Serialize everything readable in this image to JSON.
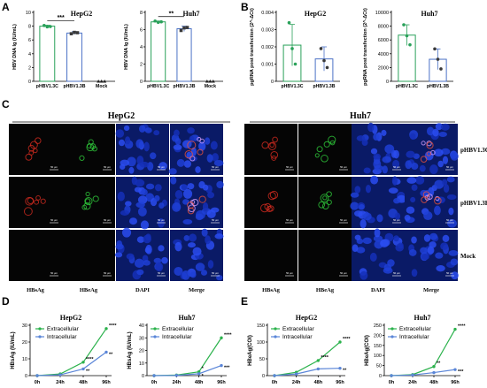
{
  "panels": {
    "A": {
      "letter": "A",
      "ylabel": "HBV DNA lg (IU/mL)"
    },
    "B": {
      "letter": "B",
      "ylabel": "pgRNA post transfection (2^-ΔCt)"
    },
    "C": {
      "letter": "C"
    },
    "D": {
      "letter": "D",
      "ylabel": "HBsAg (IU/mL)"
    },
    "E": {
      "letter": "E",
      "ylabel": "HBeAg(COI)"
    }
  },
  "micro": {
    "hepg2_title": "HepG2",
    "huh7_title": "Huh7",
    "columns": [
      "HBsAg",
      "HBeAg",
      "DAPI",
      "Merge"
    ],
    "rows": [
      "pHBV1.3C",
      "pHBV1.3B",
      "Mock"
    ],
    "scalebar": "50 μm"
  },
  "colors": {
    "green": "#2bb24c",
    "blue": "#5b86d8",
    "red": "#d12a1f",
    "bar_green": "#2aa15a",
    "bar_blue": "#4b72c6"
  },
  "chart_data": [
    {
      "id": "A1",
      "type": "bar",
      "title": "HepG2",
      "categories": [
        "pHBV1.3C",
        "pHBV1.3B",
        "Mock"
      ],
      "values": [
        8.0,
        7.0,
        0
      ],
      "errors": [
        0.15,
        0.2,
        0
      ],
      "points": [
        [
          8.1,
          7.9,
          7.95
        ],
        [
          6.9,
          7.1,
          7.05
        ],
        [
          0,
          0,
          0
        ]
      ],
      "ylim": [
        0,
        10
      ],
      "yticks": [
        0,
        2,
        4,
        6,
        8,
        10
      ],
      "significance": "***",
      "ylabel": "HBV DNA lg (IU/mL)"
    },
    {
      "id": "A2",
      "type": "bar",
      "title": "Huh7",
      "categories": [
        "pHBV1.3C",
        "pHBV1.3B",
        "Mock"
      ],
      "values": [
        6.9,
        6.1,
        0
      ],
      "errors": [
        0.1,
        0.3,
        0
      ],
      "points": [
        [
          7.0,
          6.85,
          6.9
        ],
        [
          5.9,
          6.2,
          6.25
        ],
        [
          0,
          0,
          0
        ]
      ],
      "ylim": [
        0,
        8
      ],
      "yticks": [
        0,
        2,
        4,
        6,
        8
      ],
      "significance": "**",
      "ylabel": "HBV DNA lg (IU/mL)"
    },
    {
      "id": "B1",
      "type": "bar",
      "title": "HepG2",
      "categories": [
        "pHBV1.3C",
        "pHBV1.3B"
      ],
      "values": [
        0.0021,
        0.0013
      ],
      "errors": [
        0.0012,
        0.0007
      ],
      "points": [
        [
          0.0034,
          0.0019,
          0.001
        ],
        [
          0.0019,
          0.0012,
          0.0008
        ]
      ],
      "ylim": [
        0,
        0.004
      ],
      "yticks": [
        0,
        0.001,
        0.002,
        0.003,
        0.004
      ],
      "ytick_labels": [
        "0",
        "0.001",
        "0.002",
        "0.003",
        "0.004"
      ],
      "ylabel": "pgRNA post transfection (2^-ΔCt)"
    },
    {
      "id": "B2",
      "type": "bar",
      "title": "Huh7",
      "categories": [
        "pHBV1.3C",
        "pHBV1.3B"
      ],
      "values": [
        6700,
        3200
      ],
      "errors": [
        1500,
        1500
      ],
      "points": [
        [
          8200,
          6600,
          5300
        ],
        [
          4700,
          3200,
          1800
        ]
      ],
      "ylim": [
        0,
        10000
      ],
      "yticks": [
        0,
        2000,
        4000,
        6000,
        8000,
        10000
      ],
      "ytick_labels": [
        "0",
        "2000",
        "4000",
        "6000",
        "8000",
        "10000"
      ],
      "ylabel": "pgRNA post transfection (2^-ΔCt)"
    },
    {
      "id": "D1",
      "type": "line",
      "title": "HepG2",
      "x": [
        "0h",
        "24h",
        "48h",
        "96h"
      ],
      "series": [
        {
          "name": "Extracellular",
          "values": [
            0,
            1,
            8,
            28
          ],
          "sig": [
            "",
            "",
            "****",
            "****"
          ]
        },
        {
          "name": "Intracellular",
          "values": [
            0,
            0.5,
            4,
            14
          ],
          "sig": [
            "",
            "",
            "**",
            "**"
          ]
        }
      ],
      "ylim": [
        0,
        30
      ],
      "yticks": [
        0,
        10,
        20,
        30
      ],
      "ylabel": "HBsAg (IU/mL)"
    },
    {
      "id": "D2",
      "type": "line",
      "title": "Huh7",
      "x": [
        "0h",
        "24h",
        "48h",
        "96h"
      ],
      "series": [
        {
          "name": "Extracellular",
          "values": [
            0,
            0.5,
            3,
            30
          ],
          "sig": [
            "",
            "",
            "*",
            "****"
          ]
        },
        {
          "name": "Intracellular",
          "values": [
            0,
            0.2,
            1.5,
            8
          ],
          "sig": [
            "",
            "",
            "*",
            "***"
          ]
        }
      ],
      "ylim": [
        0,
        40
      ],
      "yticks": [
        0,
        10,
        20,
        30,
        40
      ],
      "ylabel": "HBsAg (IU/mL)"
    },
    {
      "id": "E1",
      "type": "line",
      "title": "HepG2",
      "x": [
        "0h",
        "24h",
        "48h",
        "96h"
      ],
      "series": [
        {
          "name": "Extracellular",
          "values": [
            0,
            10,
            45,
            100
          ],
          "sig": [
            "",
            "",
            "****",
            "****"
          ]
        },
        {
          "name": "Intracellular",
          "values": [
            0,
            5,
            20,
            22
          ],
          "sig": [
            "",
            "",
            "",
            "**"
          ]
        }
      ],
      "ylim": [
        0,
        150
      ],
      "yticks": [
        0,
        50,
        100,
        150
      ],
      "ylabel": "HBeAg(COI)"
    },
    {
      "id": "E2",
      "type": "line",
      "title": "Huh7",
      "x": [
        "0h",
        "24h",
        "48h",
        "96h"
      ],
      "series": [
        {
          "name": "Extracellular",
          "values": [
            0,
            5,
            45,
            230
          ],
          "sig": [
            "",
            "",
            "**",
            "****"
          ]
        },
        {
          "name": "Intracellular",
          "values": [
            0,
            3,
            15,
            30
          ],
          "sig": [
            "",
            "",
            "",
            "***"
          ]
        }
      ],
      "ylim": [
        0,
        250
      ],
      "yticks": [
        0,
        50,
        100,
        150,
        200,
        250
      ],
      "ylabel": "HBeAg(COI)"
    }
  ]
}
